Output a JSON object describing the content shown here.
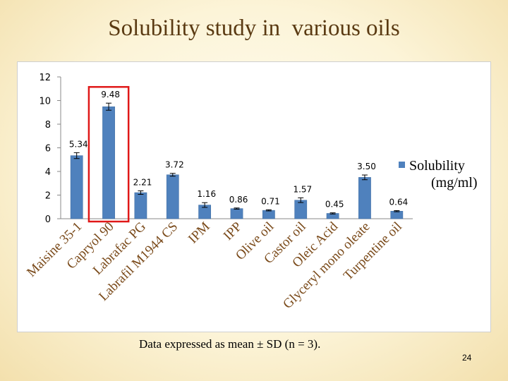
{
  "slide": {
    "title": "Solubility study in  various oils",
    "footnote": "Data expressed as mean ± SD (n = 3).",
    "page_number": "24"
  },
  "colors": {
    "bar": "#4f81bd",
    "highlight_box": "#e01818",
    "title": "#5a3a12",
    "category_label": "#7a4a1a"
  },
  "chart_data": {
    "type": "bar",
    "title": "",
    "xlabel": "",
    "ylabel": "",
    "ylim": [
      0,
      12
    ],
    "yticks": [
      0,
      2,
      4,
      6,
      8,
      10,
      12
    ],
    "grid": false,
    "legend_position": "right",
    "categories": [
      "Maisine 35-1",
      "Capryol 90",
      "Labrafac PG",
      "Labrafil M1944 CS",
      "IPM",
      "IPP",
      "Olive oil",
      "Castor oil",
      "Oleic Acid",
      "Glyceryl mono oleate",
      "Turpentine oil"
    ],
    "series": [
      {
        "name": "Solubility (mg/ml)",
        "values": [
          5.34,
          9.48,
          2.21,
          3.72,
          1.16,
          0.86,
          0.71,
          1.57,
          0.45,
          3.5,
          0.64
        ],
        "data_labels": [
          "5.34",
          "9.48",
          "2.21",
          "3.72",
          "1.16",
          "0.86",
          "0.71",
          "1.57",
          "0.45",
          "3.50",
          "0.64"
        ],
        "errors": [
          0.25,
          0.3,
          0.15,
          0.12,
          0.2,
          0.05,
          0.05,
          0.2,
          0.05,
          0.2,
          0.05
        ]
      }
    ],
    "highlighted_category": "Capryol 90"
  }
}
